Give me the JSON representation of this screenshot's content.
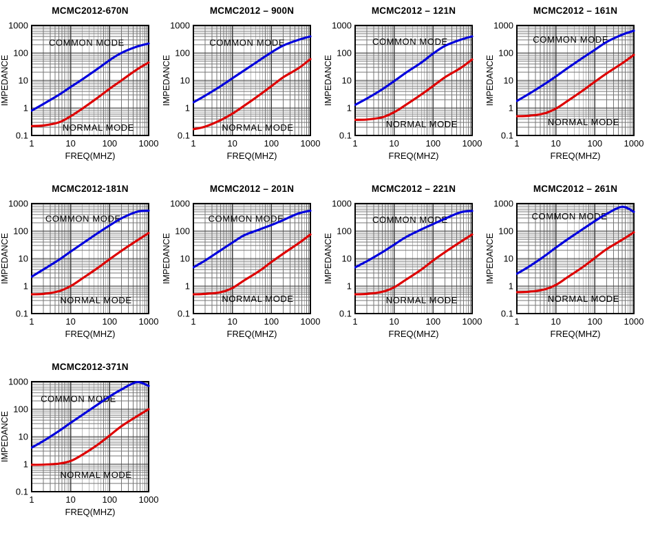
{
  "page": {
    "background": "#ffffff"
  },
  "axis": {
    "xlabel": "FREQ(MHZ)",
    "ylabel": "IMPEDANCE",
    "x_ticks": [
      "1",
      "10",
      "100",
      "1000"
    ],
    "y_ticks": [
      "1000",
      "100",
      "10",
      "1",
      "0.1"
    ],
    "xlim": [
      1,
      1000
    ],
    "ylim": [
      0.1,
      1000
    ],
    "x_scale": "log",
    "y_scale": "log"
  },
  "colors": {
    "common_mode": "#0000dd",
    "normal_mode": "#dd0000",
    "grid_major": "#3d3d3d",
    "grid_minor": "#757575",
    "plot_border": "#000000",
    "text": "#000000"
  },
  "chart_data": [
    {
      "type": "line",
      "title": "MCMC2012-670N",
      "xlabel": "FREQ(MHZ)",
      "ylabel": "IMPEDANCE",
      "xlim": [
        1,
        1000
      ],
      "ylim": [
        0.1,
        1000
      ],
      "x_scale": "log",
      "y_scale": "log",
      "x": [
        1,
        2,
        5,
        10,
        20,
        50,
        100,
        200,
        500,
        1000
      ],
      "series": [
        {
          "name": "COMMON MODE",
          "color": "#0000dd",
          "values": [
            0.8,
            1.4,
            3.0,
            5.8,
            11,
            27,
            55,
            100,
            170,
            220
          ]
        },
        {
          "name": "NORMAL MODE",
          "color": "#dd0000",
          "values": [
            0.22,
            0.23,
            0.3,
            0.5,
            0.95,
            2.4,
            5,
            10,
            25,
            45
          ]
        }
      ],
      "label_pos": {
        "common": {
          "fx": 0.47,
          "fy": 0.16
        },
        "normal": {
          "fx": 0.57,
          "fy": 0.93
        }
      }
    },
    {
      "type": "line",
      "title": "MCMC2012 – 900N",
      "xlabel": "FREQ(MHZ)",
      "ylabel": "IMPEDANCE",
      "xlim": [
        1,
        1000
      ],
      "ylim": [
        0.1,
        1000
      ],
      "x_scale": "log",
      "y_scale": "log",
      "x": [
        1,
        2,
        5,
        10,
        20,
        50,
        100,
        200,
        500,
        1000
      ],
      "series": [
        {
          "name": "COMMON MODE",
          "color": "#0000dd",
          "values": [
            1.6,
            2.8,
            6.2,
            12,
            23,
            55,
            105,
            185,
            300,
            400
          ]
        },
        {
          "name": "NORMAL MODE",
          "color": "#dd0000",
          "values": [
            0.17,
            0.21,
            0.36,
            0.62,
            1.2,
            3.0,
            6.2,
            13,
            28,
            60
          ]
        }
      ],
      "label_pos": {
        "common": {
          "fx": 0.46,
          "fy": 0.16
        },
        "normal": {
          "fx": 0.55,
          "fy": 0.93
        }
      }
    },
    {
      "type": "line",
      "title": "MCMC2012 – 121N",
      "xlabel": "FREQ(MHZ)",
      "ylabel": "IMPEDANCE",
      "xlim": [
        1,
        1000
      ],
      "ylim": [
        0.1,
        1000
      ],
      "x_scale": "log",
      "y_scale": "log",
      "x": [
        1,
        2,
        5,
        10,
        20,
        50,
        100,
        200,
        500,
        1000
      ],
      "series": [
        {
          "name": "COMMON MODE",
          "color": "#0000dd",
          "values": [
            1.3,
            2.2,
            4.8,
            9.5,
            19,
            45,
            95,
            180,
            300,
            400
          ]
        },
        {
          "name": "NORMAL MODE",
          "color": "#dd0000",
          "values": [
            0.37,
            0.38,
            0.46,
            0.7,
            1.3,
            3.1,
            6.3,
            13,
            28,
            58
          ]
        }
      ],
      "label_pos": {
        "common": {
          "fx": 0.47,
          "fy": 0.15
        },
        "normal": {
          "fx": 0.57,
          "fy": 0.9
        }
      }
    },
    {
      "type": "line",
      "title": "MCMC2012 – 161N",
      "xlabel": "FREQ(MHZ)",
      "ylabel": "IMPEDANCE",
      "xlim": [
        1,
        1000
      ],
      "ylim": [
        0.1,
        1000
      ],
      "x_scale": "log",
      "y_scale": "log",
      "x": [
        1,
        2,
        5,
        10,
        20,
        50,
        100,
        200,
        500,
        1000
      ],
      "series": [
        {
          "name": "COMMON MODE",
          "color": "#0000dd",
          "values": [
            1.8,
            3.2,
            7.2,
            14,
            28,
            68,
            130,
            250,
            460,
            640
          ]
        },
        {
          "name": "NORMAL MODE",
          "color": "#dd0000",
          "values": [
            0.5,
            0.52,
            0.63,
            0.95,
            1.8,
            4.4,
            9,
            18,
            42,
            85
          ]
        }
      ],
      "label_pos": {
        "common": {
          "fx": 0.46,
          "fy": 0.13
        },
        "normal": {
          "fx": 0.57,
          "fy": 0.88
        }
      }
    },
    {
      "type": "line",
      "title": "MCMC2012-181N",
      "xlabel": "FREQ(MHZ)",
      "ylabel": "IMPEDANCE",
      "xlim": [
        1,
        1000
      ],
      "ylim": [
        0.1,
        1000
      ],
      "x_scale": "log",
      "y_scale": "log",
      "x": [
        1,
        2,
        5,
        10,
        20,
        50,
        100,
        200,
        500,
        1000
      ],
      "series": [
        {
          "name": "COMMON MODE",
          "color": "#0000dd",
          "values": [
            2.2,
            4.0,
            9.0,
            18,
            35,
            85,
            160,
            290,
            500,
            550
          ]
        },
        {
          "name": "NORMAL MODE",
          "color": "#dd0000",
          "values": [
            0.5,
            0.52,
            0.65,
            1.0,
            1.9,
            4.6,
            9.5,
            19,
            45,
            85
          ]
        }
      ],
      "label_pos": {
        "common": {
          "fx": 0.44,
          "fy": 0.14
        },
        "normal": {
          "fx": 0.55,
          "fy": 0.88
        }
      }
    },
    {
      "type": "line",
      "title": "MCMC2012 – 201N",
      "xlabel": "FREQ(MHZ)",
      "ylabel": "IMPEDANCE",
      "xlim": [
        1,
        1000
      ],
      "ylim": [
        0.1,
        1000
      ],
      "x_scale": "log",
      "y_scale": "log",
      "x": [
        1,
        2,
        5,
        10,
        20,
        50,
        100,
        200,
        500,
        1000
      ],
      "series": [
        {
          "name": "COMMON MODE",
          "color": "#0000dd",
          "values": [
            4.8,
            8.5,
            20,
            38,
            70,
            115,
            165,
            250,
            440,
            550
          ]
        },
        {
          "name": "NORMAL MODE",
          "color": "#dd0000",
          "values": [
            0.5,
            0.52,
            0.6,
            0.85,
            1.6,
            3.6,
            7.5,
            15,
            36,
            75
          ]
        }
      ],
      "label_pos": {
        "common": {
          "fx": 0.45,
          "fy": 0.14
        },
        "normal": {
          "fx": 0.55,
          "fy": 0.87
        }
      }
    },
    {
      "type": "line",
      "title": "MCMC2012 – 221N",
      "xlabel": "FREQ(MHZ)",
      "ylabel": "IMPEDANCE",
      "xlim": [
        1,
        1000
      ],
      "ylim": [
        0.1,
        1000
      ],
      "x_scale": "log",
      "y_scale": "log",
      "x": [
        1,
        2,
        5,
        10,
        20,
        50,
        100,
        200,
        500,
        1000
      ],
      "series": [
        {
          "name": "COMMON MODE",
          "color": "#0000dd",
          "values": [
            4.8,
            8.0,
            17,
            32,
            60,
            115,
            180,
            280,
            480,
            540
          ]
        },
        {
          "name": "NORMAL MODE",
          "color": "#dd0000",
          "values": [
            0.5,
            0.52,
            0.62,
            0.9,
            1.7,
            4.0,
            8.5,
            17,
            40,
            75
          ]
        }
      ],
      "label_pos": {
        "common": {
          "fx": 0.47,
          "fy": 0.15
        },
        "normal": {
          "fx": 0.57,
          "fy": 0.88
        }
      }
    },
    {
      "type": "line",
      "title": "MCMC2012 – 261N",
      "xlabel": "FREQ(MHZ)",
      "ylabel": "IMPEDANCE",
      "xlim": [
        1,
        1000
      ],
      "ylim": [
        0.1,
        1000
      ],
      "x_scale": "log",
      "y_scale": "log",
      "x": [
        1,
        2,
        5,
        10,
        20,
        50,
        100,
        200,
        500,
        1000
      ],
      "series": [
        {
          "name": "COMMON MODE",
          "color": "#0000dd",
          "values": [
            2.8,
            5.0,
            12,
            25,
            50,
            120,
            230,
            420,
            760,
            500
          ]
        },
        {
          "name": "NORMAL MODE",
          "color": "#dd0000",
          "values": [
            0.6,
            0.62,
            0.75,
            1.1,
            2.1,
            5.0,
            10.5,
            22,
            48,
            90
          ]
        }
      ],
      "label_pos": {
        "common": {
          "fx": 0.45,
          "fy": 0.12
        },
        "normal": {
          "fx": 0.57,
          "fy": 0.87
        }
      }
    },
    {
      "type": "line",
      "title": "MCMC2012-371N",
      "xlabel": "FREQ(MHZ)",
      "ylabel": "IMPEDANCE",
      "xlim": [
        1,
        1000
      ],
      "ylim": [
        0.1,
        1000
      ],
      "x_scale": "log",
      "y_scale": "log",
      "x": [
        1,
        2,
        5,
        10,
        20,
        50,
        100,
        200,
        500,
        1000
      ],
      "series": [
        {
          "name": "COMMON MODE",
          "color": "#0000dd",
          "values": [
            4.0,
            7.0,
            16,
            32,
            62,
            150,
            290,
            520,
            960,
            700
          ]
        },
        {
          "name": "NORMAL MODE",
          "color": "#dd0000",
          "values": [
            0.95,
            0.96,
            1.05,
            1.3,
            2.2,
            5.2,
            11,
            24,
            55,
            100
          ]
        }
      ],
      "label_pos": {
        "common": {
          "fx": 0.4,
          "fy": 0.16
        },
        "normal": {
          "fx": 0.55,
          "fy": 0.85
        }
      }
    }
  ]
}
